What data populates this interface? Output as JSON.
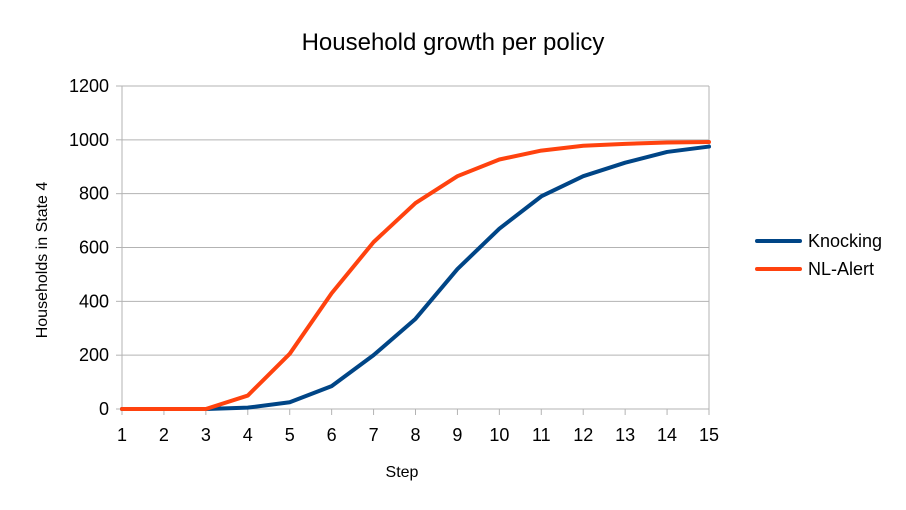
{
  "chart_data": {
    "type": "line",
    "title": "Household growth per policy",
    "xlabel": "Step",
    "ylabel": "Households in State 4",
    "x": [
      1,
      2,
      3,
      4,
      5,
      6,
      7,
      8,
      9,
      10,
      11,
      12,
      13,
      14,
      15
    ],
    "ylim": [
      0,
      1200
    ],
    "yticks": [
      0,
      200,
      400,
      600,
      800,
      1000,
      1200
    ],
    "grid": true,
    "legend_position": "right",
    "series": [
      {
        "name": "Knocking",
        "color": "#004586",
        "values": [
          0,
          0,
          0,
          5,
          25,
          85,
          200,
          335,
          520,
          670,
          790,
          865,
          915,
          955,
          975
        ]
      },
      {
        "name": "NL-Alert",
        "color": "#ff420e",
        "values": [
          0,
          0,
          0,
          50,
          205,
          430,
          620,
          765,
          865,
          927,
          960,
          978,
          985,
          990,
          992
        ]
      }
    ]
  }
}
